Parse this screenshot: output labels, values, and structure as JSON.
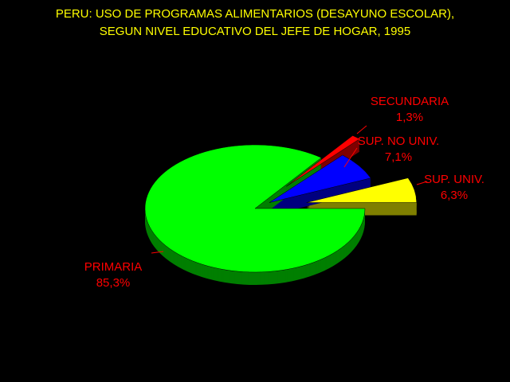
{
  "chart_data": {
    "type": "pie",
    "title": [
      "PERU: USO DE PROGRAMAS ALIMENTARIOS (DESAYUNO ESCOLAR),",
      "SEGUN NIVEL EDUCATIVO DEL JEFE DE HOGAR, 1995"
    ],
    "categories": [
      "SUP. UNIV.",
      "SUP. NO UNIV.",
      "SECUNDARIA",
      "PRIMARIA"
    ],
    "values": [
      6.3,
      7.1,
      1.3,
      85.3
    ],
    "value_labels": [
      "6,3%",
      "7,1%",
      "1,3%",
      "85,3%"
    ],
    "colors": [
      "#ffff00",
      "#0000ff",
      "#ff0000",
      "#00ff00"
    ]
  }
}
